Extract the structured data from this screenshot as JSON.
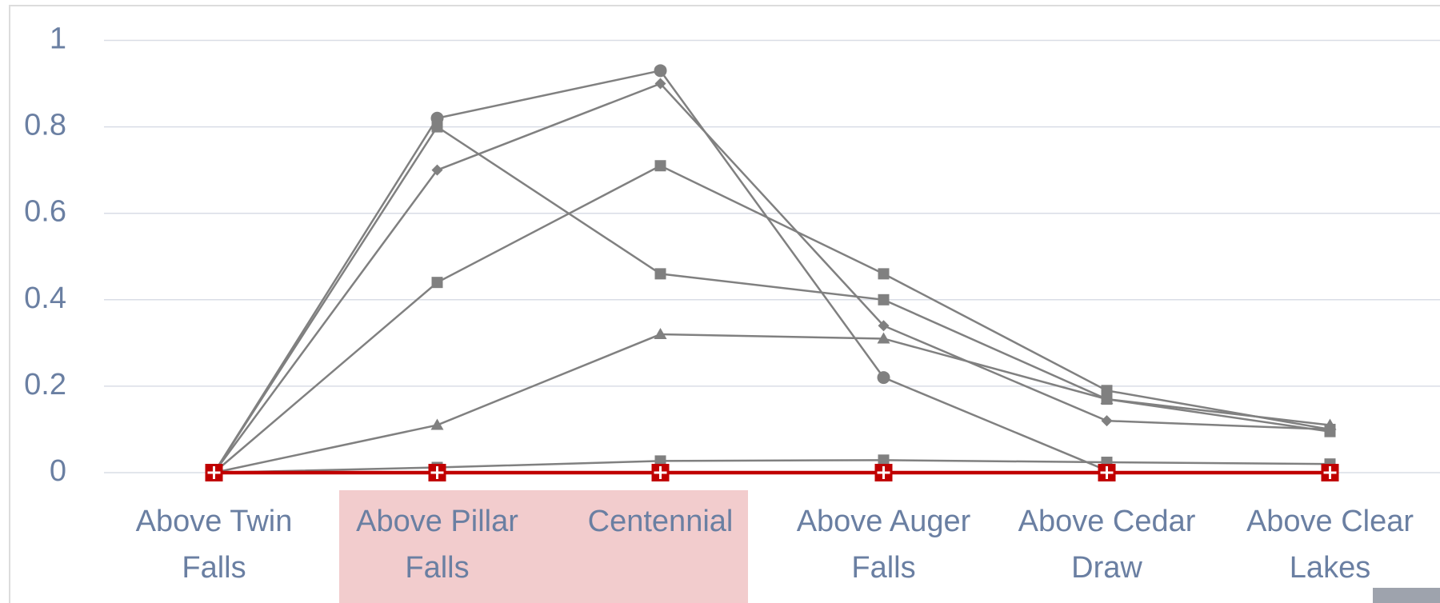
{
  "chart_data": {
    "type": "line",
    "categories": [
      "Above Twin Falls",
      "Above Pillar Falls",
      "Centennial",
      "Above Auger Falls",
      "Above Cedar Draw",
      "Above Clear Lakes"
    ],
    "ylim": [
      0,
      1
    ],
    "yticks": [
      0,
      0.2,
      0.4,
      0.6,
      0.8,
      1
    ],
    "grid": true,
    "series": [
      {
        "color": "#808080",
        "marker": "circle",
        "values": [
          0,
          0.82,
          0.93,
          0.22,
          0.005,
          null
        ]
      },
      {
        "color": "#808080",
        "marker": "diamond",
        "values": [
          0,
          0.7,
          0.9,
          0.34,
          0.12,
          0.1
        ]
      },
      {
        "color": "#808080",
        "marker": "square",
        "values": [
          0,
          0.8,
          0.46,
          0.4,
          0.17,
          0.095
        ]
      },
      {
        "color": "#808080",
        "marker": "square",
        "values": [
          0,
          0.44,
          0.71,
          0.46,
          0.19,
          0.1
        ]
      },
      {
        "color": "#808080",
        "marker": "triangle",
        "values": [
          0,
          0.11,
          0.32,
          0.31,
          0.17,
          0.11
        ]
      },
      {
        "color": "#808080",
        "marker": "square",
        "values": [
          0,
          0.012,
          0.027,
          0.029,
          0.024,
          0.02
        ]
      },
      {
        "color": "#c00000",
        "marker": "cross",
        "values": [
          0,
          0,
          0,
          0,
          0,
          0
        ]
      }
    ]
  }
}
